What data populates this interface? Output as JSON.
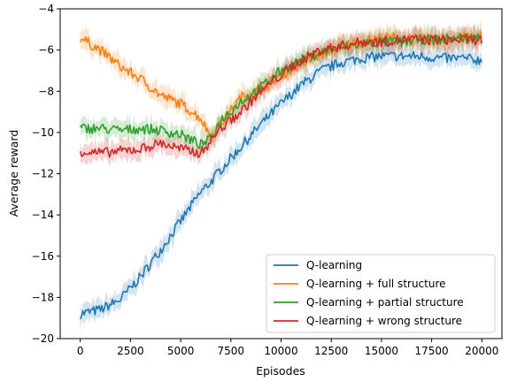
{
  "chart_data": {
    "type": "line",
    "title": "",
    "xlabel": "Episodes",
    "ylabel": "Average reward",
    "xlim": [
      -1000,
      21000
    ],
    "ylim": [
      -20,
      -4
    ],
    "xticks": [
      0,
      2500,
      5000,
      7500,
      10000,
      12500,
      15000,
      17500,
      20000
    ],
    "yticks": [
      -20,
      -18,
      -16,
      -14,
      -12,
      -10,
      -8,
      -6,
      -4
    ],
    "grid": false,
    "legend_position": "lower-right",
    "x": [
      0,
      1000,
      2000,
      3000,
      4000,
      5000,
      6000,
      6500,
      7000,
      8000,
      9000,
      10000,
      11000,
      12000,
      13000,
      14000,
      15000,
      16000,
      17000,
      18000,
      19000,
      20000
    ],
    "series": [
      {
        "name": "Q-learning",
        "color": "#1f77b4",
        "values": [
          -18.8,
          -18.6,
          -18.1,
          -17.0,
          -15.7,
          -14.3,
          -12.9,
          -12.4,
          -11.8,
          -10.7,
          -9.6,
          -8.6,
          -7.7,
          -7.0,
          -6.6,
          -6.4,
          -6.3,
          -6.3,
          -6.3,
          -6.4,
          -6.4,
          -6.5
        ]
      },
      {
        "name": "Q-learning + full structure",
        "color": "#ff7f0e",
        "values": [
          -5.4,
          -6.0,
          -6.8,
          -7.4,
          -8.2,
          -8.6,
          -9.3,
          -10.2,
          -9.6,
          -8.3,
          -7.9,
          -7.2,
          -6.7,
          -6.2,
          -5.8,
          -5.6,
          -5.4,
          -5.4,
          -5.5,
          -5.5,
          -5.4,
          -5.3
        ]
      },
      {
        "name": "Q-learning + partial structure",
        "color": "#2ca02c",
        "values": [
          -9.8,
          -9.8,
          -9.9,
          -9.8,
          -9.9,
          -10.1,
          -10.6,
          -10.3,
          -9.4,
          -8.5,
          -7.8,
          -7.0,
          -6.5,
          -6.1,
          -5.9,
          -5.7,
          -5.6,
          -5.6,
          -5.5,
          -5.5,
          -5.4,
          -5.4
        ]
      },
      {
        "name": "Q-learning + wrong structure",
        "color": "#d62728",
        "values": [
          -10.9,
          -11.0,
          -10.9,
          -10.8,
          -10.5,
          -10.8,
          -11.0,
          -10.4,
          -9.8,
          -9.0,
          -8.0,
          -7.2,
          -6.5,
          -6.0,
          -5.8,
          -5.6,
          -5.6,
          -5.5,
          -5.5,
          -5.5,
          -5.5,
          -5.5
        ]
      }
    ]
  }
}
